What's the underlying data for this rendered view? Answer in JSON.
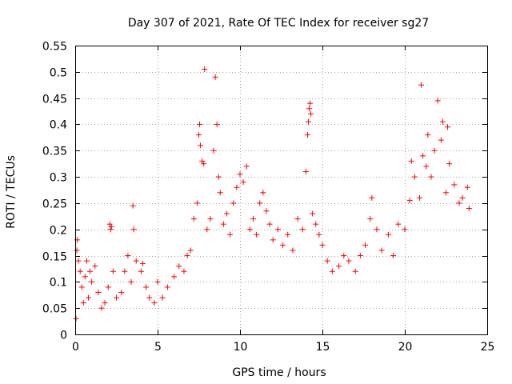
{
  "chart_data": {
    "type": "scatter",
    "title": "Day 307 of 2021, Rate Of TEC Index for receiver sg27",
    "xlabel": "GPS time / hours",
    "ylabel": "ROTI / TECUs",
    "xlim": [
      0,
      25
    ],
    "ylim": [
      0,
      0.55
    ],
    "xticks": [
      0,
      5,
      10,
      15,
      20,
      25
    ],
    "xtick_labels": [
      "0",
      "5",
      "10",
      "15",
      "20",
      "25"
    ],
    "yticks": [
      0,
      0.05,
      0.1,
      0.15,
      0.2,
      0.25,
      0.3,
      0.35,
      0.4,
      0.45,
      0.5,
      0.55
    ],
    "ytick_labels": [
      "0",
      "0.05",
      "0.1",
      "0.15",
      "0.2",
      "0.25",
      "0.3",
      "0.35",
      "0.4",
      "0.45",
      "0.5",
      "0.55"
    ],
    "grid": true,
    "marker": "+",
    "color": "#ff0000",
    "series": [
      {
        "name": "ROTI",
        "points": [
          [
            0.05,
            0.03
          ],
          [
            0.1,
            0.16
          ],
          [
            0.12,
            0.18
          ],
          [
            0.2,
            0.14
          ],
          [
            0.3,
            0.12
          ],
          [
            0.4,
            0.09
          ],
          [
            0.5,
            0.06
          ],
          [
            0.6,
            0.11
          ],
          [
            0.7,
            0.14
          ],
          [
            0.8,
            0.07
          ],
          [
            0.9,
            0.12
          ],
          [
            1.0,
            0.1
          ],
          [
            1.2,
            0.13
          ],
          [
            1.4,
            0.08
          ],
          [
            1.6,
            0.05
          ],
          [
            1.8,
            0.06
          ],
          [
            2.0,
            0.09
          ],
          [
            2.1,
            0.21
          ],
          [
            2.15,
            0.2
          ],
          [
            2.2,
            0.205
          ],
          [
            2.3,
            0.12
          ],
          [
            2.5,
            0.07
          ],
          [
            2.8,
            0.08
          ],
          [
            3.0,
            0.12
          ],
          [
            3.2,
            0.15
          ],
          [
            3.4,
            0.1
          ],
          [
            3.5,
            0.245
          ],
          [
            3.55,
            0.2
          ],
          [
            3.7,
            0.14
          ],
          [
            4.0,
            0.12
          ],
          [
            4.1,
            0.135
          ],
          [
            4.3,
            0.09
          ],
          [
            4.5,
            0.07
          ],
          [
            4.8,
            0.06
          ],
          [
            5.0,
            0.1
          ],
          [
            5.3,
            0.07
          ],
          [
            5.6,
            0.09
          ],
          [
            6.0,
            0.11
          ],
          [
            6.3,
            0.13
          ],
          [
            6.6,
            0.12
          ],
          [
            6.8,
            0.15
          ],
          [
            7.0,
            0.16
          ],
          [
            7.2,
            0.22
          ],
          [
            7.4,
            0.25
          ],
          [
            7.5,
            0.38
          ],
          [
            7.55,
            0.4
          ],
          [
            7.6,
            0.36
          ],
          [
            7.7,
            0.33
          ],
          [
            7.8,
            0.325
          ],
          [
            7.85,
            0.505
          ],
          [
            8.0,
            0.2
          ],
          [
            8.2,
            0.22
          ],
          [
            8.4,
            0.35
          ],
          [
            8.5,
            0.49
          ],
          [
            8.6,
            0.4
          ],
          [
            8.7,
            0.3
          ],
          [
            8.8,
            0.27
          ],
          [
            9.0,
            0.21
          ],
          [
            9.2,
            0.23
          ],
          [
            9.4,
            0.19
          ],
          [
            9.6,
            0.25
          ],
          [
            9.8,
            0.28
          ],
          [
            10.0,
            0.305
          ],
          [
            10.2,
            0.29
          ],
          [
            10.4,
            0.32
          ],
          [
            10.6,
            0.2
          ],
          [
            10.8,
            0.22
          ],
          [
            11.0,
            0.19
          ],
          [
            11.2,
            0.25
          ],
          [
            11.4,
            0.27
          ],
          [
            11.6,
            0.235
          ],
          [
            11.8,
            0.21
          ],
          [
            12.0,
            0.18
          ],
          [
            12.3,
            0.2
          ],
          [
            12.6,
            0.17
          ],
          [
            12.9,
            0.19
          ],
          [
            13.2,
            0.16
          ],
          [
            13.5,
            0.22
          ],
          [
            13.8,
            0.2
          ],
          [
            14.0,
            0.31
          ],
          [
            14.1,
            0.38
          ],
          [
            14.15,
            0.405
          ],
          [
            14.2,
            0.43
          ],
          [
            14.25,
            0.44
          ],
          [
            14.3,
            0.42
          ],
          [
            14.4,
            0.23
          ],
          [
            14.6,
            0.21
          ],
          [
            14.8,
            0.19
          ],
          [
            15.0,
            0.17
          ],
          [
            15.3,
            0.14
          ],
          [
            15.6,
            0.12
          ],
          [
            16.0,
            0.13
          ],
          [
            16.3,
            0.15
          ],
          [
            16.6,
            0.14
          ],
          [
            17.0,
            0.12
          ],
          [
            17.3,
            0.15
          ],
          [
            17.6,
            0.17
          ],
          [
            17.9,
            0.22
          ],
          [
            18.0,
            0.26
          ],
          [
            18.3,
            0.2
          ],
          [
            18.6,
            0.16
          ],
          [
            19.0,
            0.19
          ],
          [
            19.3,
            0.15
          ],
          [
            19.6,
            0.21
          ],
          [
            20.0,
            0.2
          ],
          [
            20.3,
            0.255
          ],
          [
            20.4,
            0.33
          ],
          [
            20.6,
            0.3
          ],
          [
            20.9,
            0.26
          ],
          [
            21.0,
            0.475
          ],
          [
            21.1,
            0.34
          ],
          [
            21.3,
            0.32
          ],
          [
            21.4,
            0.38
          ],
          [
            21.6,
            0.3
          ],
          [
            21.8,
            0.35
          ],
          [
            22.0,
            0.445
          ],
          [
            22.2,
            0.37
          ],
          [
            22.3,
            0.405
          ],
          [
            22.5,
            0.27
          ],
          [
            22.6,
            0.395
          ],
          [
            22.7,
            0.325
          ],
          [
            23.0,
            0.285
          ],
          [
            23.3,
            0.25
          ],
          [
            23.5,
            0.26
          ],
          [
            23.8,
            0.28
          ],
          [
            23.9,
            0.24
          ]
        ]
      }
    ]
  }
}
